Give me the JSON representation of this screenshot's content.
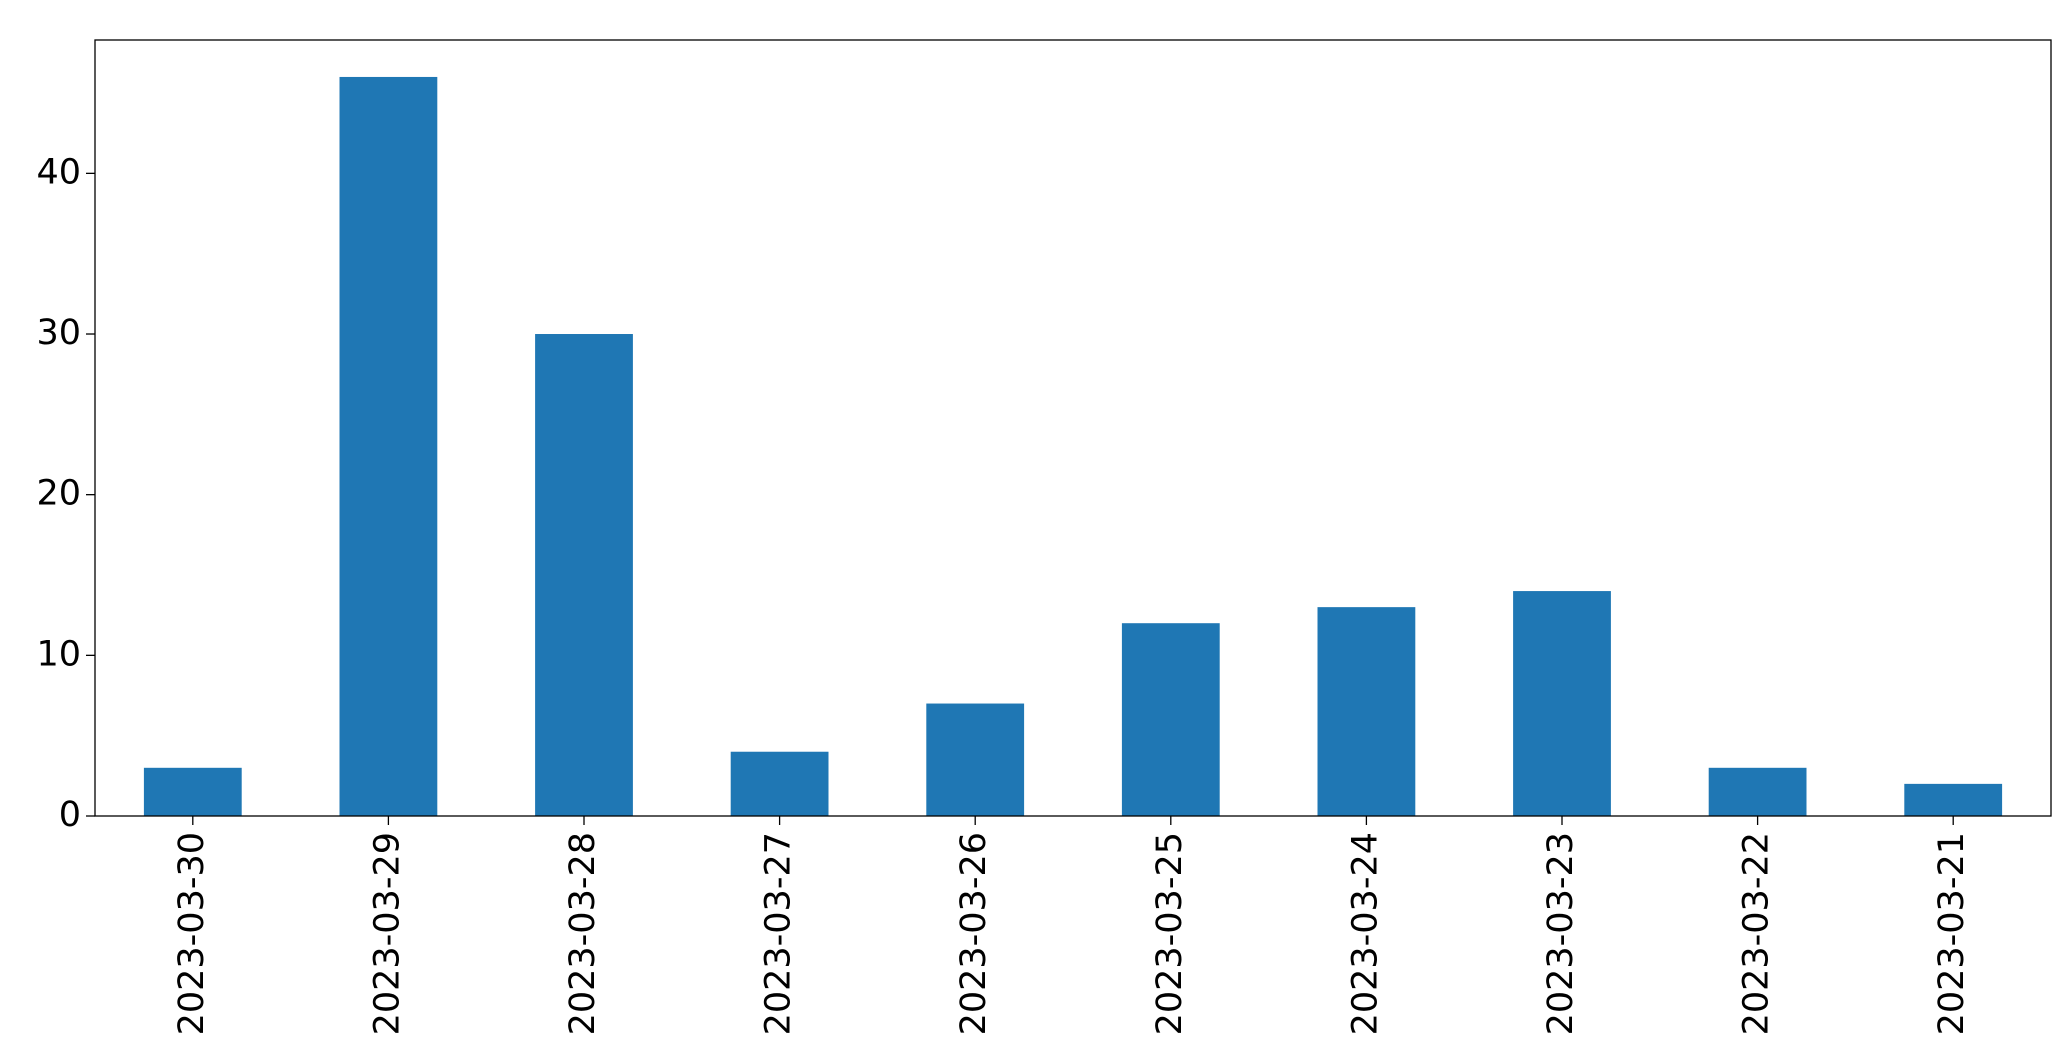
{
  "chart_data": {
    "type": "bar",
    "categories": [
      "2023-03-30",
      "2023-03-29",
      "2023-03-28",
      "2023-03-27",
      "2023-03-26",
      "2023-03-25",
      "2023-03-24",
      "2023-03-23",
      "2023-03-22",
      "2023-03-21"
    ],
    "values": [
      3,
      46,
      30,
      4,
      7,
      12,
      13,
      14,
      3,
      2
    ],
    "color": "#1f77b4",
    "ylim": [
      0,
      48.3
    ],
    "yticks": [
      0,
      10,
      20,
      30,
      40
    ],
    "grid": false
  }
}
